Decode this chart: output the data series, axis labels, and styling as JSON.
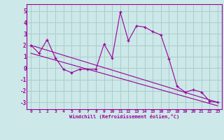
{
  "xlabel": "Windchill (Refroidissement éolien,°C)",
  "bg_color": "#cce8e8",
  "line_color": "#990099",
  "grid_color": "#aacccc",
  "hours": [
    0,
    1,
    2,
    3,
    4,
    5,
    6,
    7,
    8,
    9,
    10,
    11,
    12,
    13,
    14,
    15,
    16,
    17,
    18,
    19,
    20,
    21,
    22,
    23
  ],
  "values": [
    2.0,
    1.3,
    2.5,
    0.9,
    -0.1,
    -0.4,
    -0.1,
    -0.1,
    -0.1,
    2.1,
    0.9,
    4.9,
    2.4,
    3.7,
    3.6,
    3.2,
    2.9,
    0.8,
    -1.6,
    -2.1,
    -1.9,
    -2.1,
    -2.9,
    -3.0
  ],
  "trend1_x": [
    0,
    23
  ],
  "trend1_y": [
    2.0,
    -3.0
  ],
  "trend2_x": [
    0,
    23
  ],
  "trend2_y": [
    1.3,
    -3.3
  ],
  "ylim": [
    -3.6,
    5.6
  ],
  "xlim": [
    -0.5,
    23.5
  ],
  "yticks": [
    -3,
    -2,
    -1,
    0,
    1,
    2,
    3,
    4,
    5
  ],
  "xticks": [
    0,
    1,
    2,
    3,
    4,
    5,
    6,
    7,
    8,
    9,
    10,
    11,
    12,
    13,
    14,
    15,
    16,
    17,
    18,
    19,
    20,
    21,
    22,
    23
  ],
  "xtick_labels": [
    "0",
    "1",
    "2",
    "3",
    "4",
    "5",
    "6",
    "7",
    "8",
    "9",
    "10",
    "11",
    "12",
    "13",
    "14",
    "15",
    "16",
    "17",
    "18",
    "19",
    "20",
    "21",
    "22",
    "23"
  ]
}
